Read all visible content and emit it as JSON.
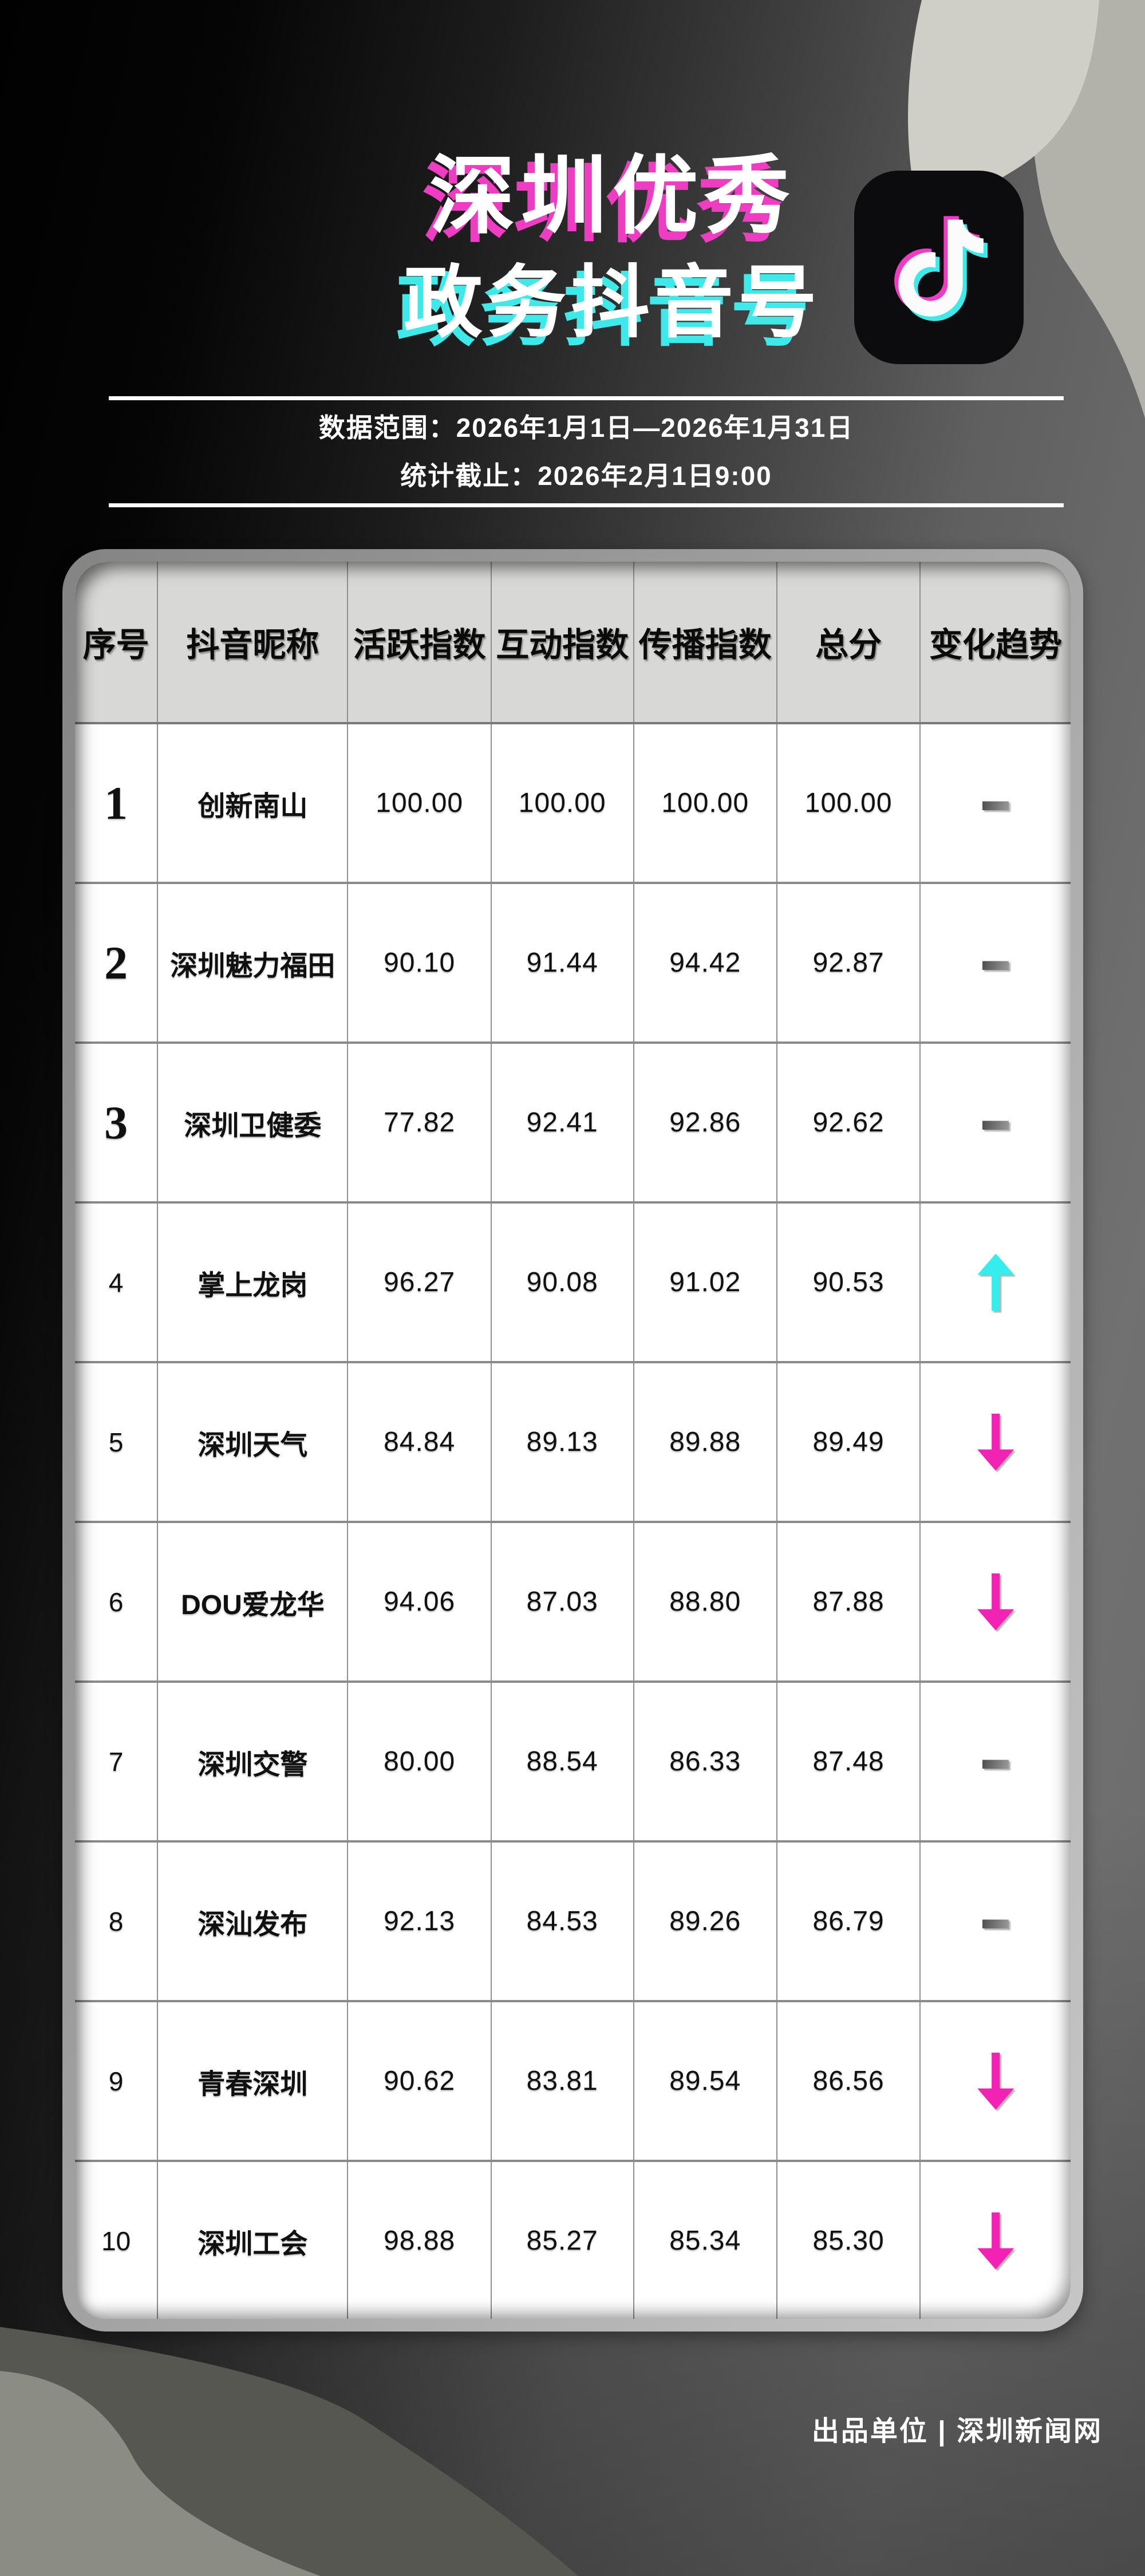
{
  "title": {
    "line1": "深圳优秀",
    "line2": "政务抖音号"
  },
  "subtitle": {
    "data_range": "数据范围：2026年1月1日—2026年1月31日",
    "stat_deadline": "统计截止：2026年2月1日9:00"
  },
  "table": {
    "columns": [
      "序号",
      "抖音昵称",
      "活跃指数",
      "互动指数",
      "传播指数",
      "总分",
      "变化趋势"
    ],
    "rows": [
      {
        "rank": "1",
        "name": "创新南山",
        "activity": "100.00",
        "interaction": "100.00",
        "spread": "100.00",
        "total": "100.00",
        "trend": "flat"
      },
      {
        "rank": "2",
        "name": "深圳魅力福田",
        "activity": "90.10",
        "interaction": "91.44",
        "spread": "94.42",
        "total": "92.87",
        "trend": "flat"
      },
      {
        "rank": "3",
        "name": "深圳卫健委",
        "activity": "77.82",
        "interaction": "92.41",
        "spread": "92.86",
        "total": "92.62",
        "trend": "flat"
      },
      {
        "rank": "4",
        "name": "掌上龙岗",
        "activity": "96.27",
        "interaction": "90.08",
        "spread": "91.02",
        "total": "90.53",
        "trend": "up"
      },
      {
        "rank": "5",
        "name": "深圳天气",
        "activity": "84.84",
        "interaction": "89.13",
        "spread": "89.88",
        "total": "89.49",
        "trend": "down"
      },
      {
        "rank": "6",
        "name": "DOU爱龙华",
        "activity": "94.06",
        "interaction": "87.03",
        "spread": "88.80",
        "total": "87.88",
        "trend": "down"
      },
      {
        "rank": "7",
        "name": "深圳交警",
        "activity": "80.00",
        "interaction": "88.54",
        "spread": "86.33",
        "total": "87.48",
        "trend": "flat"
      },
      {
        "rank": "8",
        "name": "深汕发布",
        "activity": "92.13",
        "interaction": "84.53",
        "spread": "89.26",
        "total": "86.79",
        "trend": "flat"
      },
      {
        "rank": "9",
        "name": "青春深圳",
        "activity": "90.62",
        "interaction": "83.81",
        "spread": "89.54",
        "total": "86.56",
        "trend": "down"
      },
      {
        "rank": "10",
        "name": "深圳工会",
        "activity": "98.88",
        "interaction": "85.27",
        "spread": "85.34",
        "total": "85.30",
        "trend": "down"
      }
    ]
  },
  "chart_data": {
    "type": "table",
    "title": "深圳优秀政务抖音号",
    "period": "2026年1月1日—2026年1月31日",
    "cutoff": "2026年2月1日9:00",
    "columns": [
      "序号",
      "抖音昵称",
      "活跃指数",
      "互动指数",
      "传播指数",
      "总分",
      "变化趋势"
    ],
    "rows": [
      [
        1,
        "创新南山",
        100.0,
        100.0,
        100.0,
        100.0,
        "flat"
      ],
      [
        2,
        "深圳魅力福田",
        90.1,
        91.44,
        94.42,
        92.87,
        "flat"
      ],
      [
        3,
        "深圳卫健委",
        77.82,
        92.41,
        92.86,
        92.62,
        "flat"
      ],
      [
        4,
        "掌上龙岗",
        96.27,
        90.08,
        91.02,
        90.53,
        "up"
      ],
      [
        5,
        "深圳天气",
        84.84,
        89.13,
        89.88,
        89.49,
        "down"
      ],
      [
        6,
        "DOU爱龙华",
        94.06,
        87.03,
        88.8,
        87.88,
        "down"
      ],
      [
        7,
        "深圳交警",
        80.0,
        88.54,
        86.33,
        87.48,
        "flat"
      ],
      [
        8,
        "深汕发布",
        92.13,
        84.53,
        89.26,
        86.79,
        "flat"
      ],
      [
        9,
        "青春深圳",
        90.62,
        83.81,
        89.54,
        86.56,
        "down"
      ],
      [
        10,
        "深圳工会",
        98.88,
        85.27,
        85.34,
        85.3,
        "down"
      ]
    ]
  },
  "footer": {
    "credit": "出品单位 | 深圳新闻网"
  },
  "icons": {
    "tiktok": "tiktok-note-icon",
    "trend_up": "trend-up-arrow-icon",
    "trend_down": "trend-down-arrow-icon",
    "trend_flat": "trend-dash-icon"
  },
  "colors": {
    "magenta": "#F222B5",
    "cyan": "#35EDED",
    "title_shadow_magenta": "#EE3CC3",
    "title_shadow_cyan": "#3FE9E9",
    "header_bg": "#D8D8D6",
    "card_frame": "#B2B2B2"
  }
}
